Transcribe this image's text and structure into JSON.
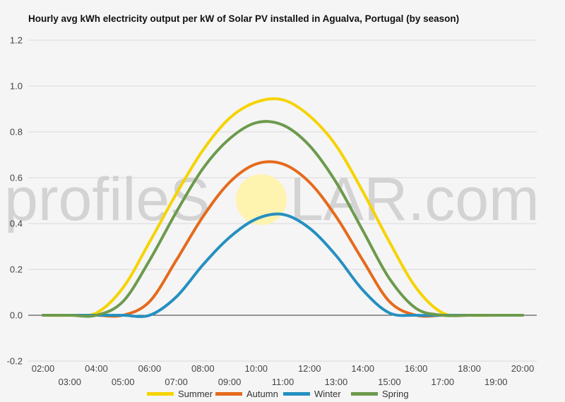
{
  "watermark": {
    "text_left": "profileS",
    "text_right": "LAR.com",
    "sun_color": "#fff3b0"
  },
  "chart_data": {
    "type": "line",
    "title": "Hourly avg kWh electricity output per kW of Solar PV installed in Agualva, Portugal (by season)",
    "xlabel": "",
    "ylabel": "",
    "ylim": [
      -0.2,
      1.2
    ],
    "yticks": [
      -0.2,
      0.0,
      0.2,
      0.4,
      0.6,
      0.8,
      1.0,
      1.2
    ],
    "ytick_labels": [
      "-0.2",
      "0.0",
      "0.2",
      "0.4",
      "0.6",
      "0.8",
      "1.0",
      "1.2"
    ],
    "categories": [
      "02:00",
      "03:00",
      "04:00",
      "05:00",
      "06:00",
      "07:00",
      "08:00",
      "09:00",
      "10:00",
      "11:00",
      "12:00",
      "13:00",
      "14:00",
      "15:00",
      "16:00",
      "17:00",
      "18:00",
      "19:00",
      "20:00"
    ],
    "grid": true,
    "legend_position": "bottom",
    "series": [
      {
        "name": "Summer",
        "color": "#f5d300",
        "values": [
          0,
          0,
          0.01,
          0.12,
          0.32,
          0.53,
          0.72,
          0.86,
          0.93,
          0.94,
          0.87,
          0.74,
          0.54,
          0.32,
          0.12,
          0.01,
          0,
          0,
          0
        ]
      },
      {
        "name": "Autumn",
        "color": "#e56a1c",
        "values": [
          0,
          0,
          0,
          0,
          0.06,
          0.24,
          0.43,
          0.58,
          0.66,
          0.66,
          0.58,
          0.43,
          0.24,
          0.06,
          0,
          0,
          0,
          0,
          0
        ]
      },
      {
        "name": "Winter",
        "color": "#2590c0",
        "values": [
          0,
          0,
          0,
          0,
          0,
          0.08,
          0.22,
          0.34,
          0.42,
          0.44,
          0.38,
          0.26,
          0.11,
          0.01,
          0,
          0,
          0,
          0,
          0
        ]
      },
      {
        "name": "Spring",
        "color": "#6d9a4d",
        "values": [
          0,
          0,
          0,
          0.06,
          0.24,
          0.45,
          0.64,
          0.77,
          0.84,
          0.83,
          0.74,
          0.58,
          0.37,
          0.16,
          0.03,
          0,
          0,
          0,
          0
        ]
      }
    ]
  }
}
